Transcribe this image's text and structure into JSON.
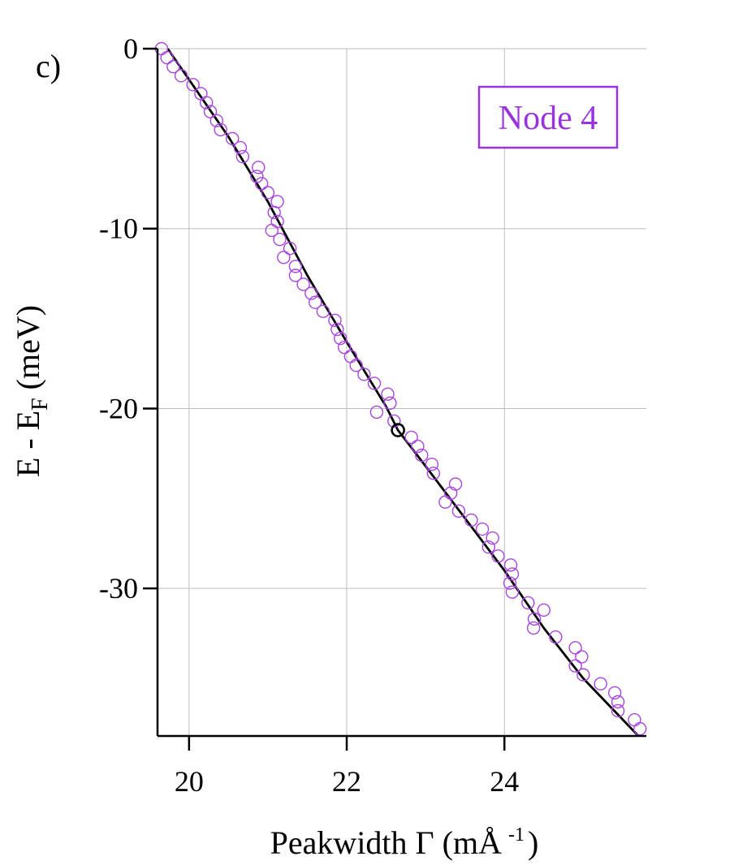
{
  "panel_label": "c)",
  "chart_data": {
    "type": "scatter",
    "title": "",
    "xlabel": "Peakwidth Γ (mÅ",
    "xlabel_superscript": "-1",
    "xlabel_suffix": ")",
    "ylabel_main": "E - E",
    "ylabel_subscript": "F",
    "ylabel_suffix": " (meV)",
    "xlim": [
      19.6,
      25.8
    ],
    "ylim": [
      -38.2,
      0
    ],
    "xticks": [
      20,
      22,
      24
    ],
    "xtick_labels": [
      "20",
      "22",
      "24"
    ],
    "yticks": [
      0,
      -10,
      -20,
      -30
    ],
    "ytick_labels": [
      "0",
      "-10",
      "-20",
      "-30"
    ],
    "grid": true,
    "legend_box": {
      "text": "Node 4",
      "color": "#9933dd",
      "placement": "top-right"
    },
    "series": [
      {
        "type": "scatter",
        "marker": "open-circle",
        "color": "#aa44e0",
        "points": [
          [
            19.65,
            0.0
          ],
          [
            19.72,
            -0.5
          ],
          [
            19.8,
            -1.0
          ],
          [
            19.9,
            -1.5
          ],
          [
            20.05,
            -2.0
          ],
          [
            20.15,
            -2.5
          ],
          [
            20.22,
            -3.0
          ],
          [
            20.27,
            -3.5
          ],
          [
            20.35,
            -4.0
          ],
          [
            20.4,
            -4.5
          ],
          [
            20.55,
            -5.0
          ],
          [
            20.65,
            -5.5
          ],
          [
            20.68,
            -6.0
          ],
          [
            20.88,
            -6.6
          ],
          [
            20.86,
            -7.1
          ],
          [
            20.92,
            -7.5
          ],
          [
            21.0,
            -8.0
          ],
          [
            21.12,
            -8.5
          ],
          [
            21.08,
            -9.1
          ],
          [
            21.12,
            -9.6
          ],
          [
            21.05,
            -10.1
          ],
          [
            21.15,
            -10.6
          ],
          [
            21.2,
            -11.6
          ],
          [
            21.28,
            -11.1
          ],
          [
            21.35,
            -12.1
          ],
          [
            21.35,
            -12.6
          ],
          [
            21.45,
            -13.1
          ],
          [
            21.55,
            -13.6
          ],
          [
            21.6,
            -14.1
          ],
          [
            21.7,
            -14.6
          ],
          [
            21.85,
            -15.1
          ],
          [
            21.88,
            -15.6
          ],
          [
            21.92,
            -16.1
          ],
          [
            21.97,
            -16.6
          ],
          [
            22.05,
            -17.1
          ],
          [
            22.12,
            -17.6
          ],
          [
            22.22,
            -18.1
          ],
          [
            22.35,
            -18.6
          ],
          [
            22.52,
            -19.2
          ],
          [
            22.55,
            -19.7
          ],
          [
            22.38,
            -20.2
          ],
          [
            22.6,
            -20.7
          ],
          [
            22.82,
            -21.6
          ],
          [
            22.9,
            -22.1
          ],
          [
            22.95,
            -22.6
          ],
          [
            23.08,
            -23.1
          ],
          [
            23.1,
            -23.6
          ],
          [
            23.38,
            -24.2
          ],
          [
            23.32,
            -24.7
          ],
          [
            23.25,
            -25.2
          ],
          [
            23.42,
            -25.7
          ],
          [
            23.58,
            -26.2
          ],
          [
            23.72,
            -26.7
          ],
          [
            23.85,
            -27.2
          ],
          [
            23.8,
            -27.7
          ],
          [
            23.92,
            -28.2
          ],
          [
            24.08,
            -28.7
          ],
          [
            24.1,
            -29.2
          ],
          [
            24.07,
            -29.7
          ],
          [
            24.1,
            -30.2
          ],
          [
            24.3,
            -30.8
          ],
          [
            24.5,
            -31.2
          ],
          [
            24.38,
            -31.7
          ],
          [
            24.37,
            -32.2
          ],
          [
            24.65,
            -32.7
          ],
          [
            24.9,
            -33.3
          ],
          [
            24.98,
            -33.8
          ],
          [
            24.9,
            -34.3
          ],
          [
            25.0,
            -34.8
          ],
          [
            25.22,
            -35.3
          ],
          [
            25.4,
            -35.8
          ],
          [
            25.44,
            -36.3
          ],
          [
            25.44,
            -36.8
          ],
          [
            25.65,
            -37.3
          ],
          [
            25.72,
            -37.8
          ]
        ]
      },
      {
        "type": "line",
        "color": "#000000",
        "points": [
          [
            19.73,
            0.0
          ],
          [
            20.5,
            -4.9
          ],
          [
            21.0,
            -8.5
          ],
          [
            21.5,
            -12.6
          ],
          [
            22.0,
            -16.3
          ],
          [
            22.5,
            -19.9
          ],
          [
            22.65,
            -21.2
          ],
          [
            23.0,
            -23.2
          ],
          [
            23.5,
            -26.1
          ],
          [
            24.0,
            -29.0
          ],
          [
            24.5,
            -32.2
          ],
          [
            25.0,
            -35.0
          ],
          [
            25.7,
            -38.2
          ]
        ]
      }
    ],
    "highlight_point": {
      "x": 22.65,
      "y": -21.2,
      "marker": "open-circle",
      "color": "#000000"
    }
  }
}
